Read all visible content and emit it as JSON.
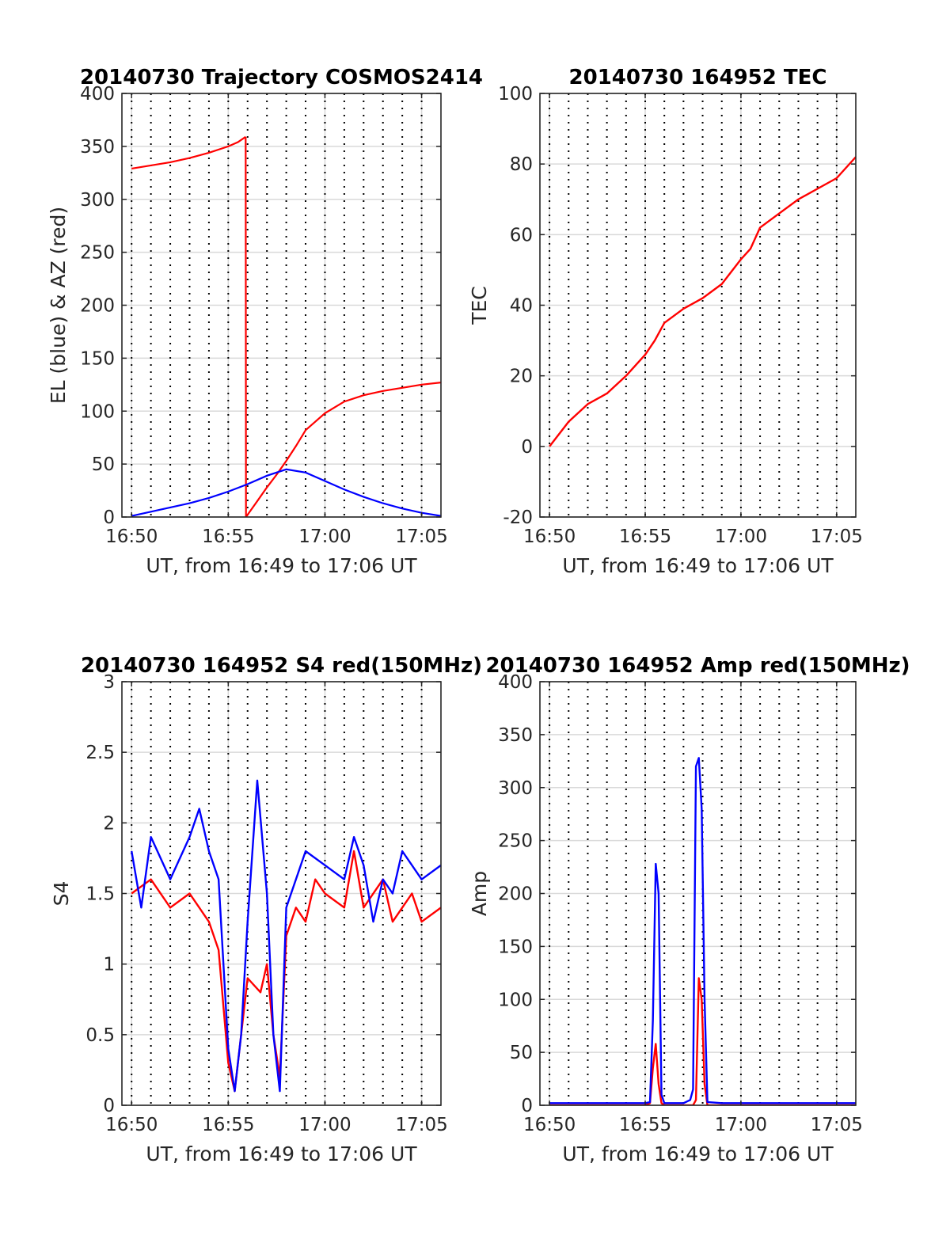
{
  "figure": {
    "vertical_markers": {
      "description_in_image": "dotted vertical lines at one-minute spacing",
      "x": [
        "16:50",
        "16:51",
        "16:52",
        "16:53",
        "16:54",
        "16:55",
        "16:56",
        "16:57",
        "16:58",
        "16:59",
        "17:00",
        "17:01",
        "17:02",
        "17:03",
        "17:04",
        "17:05",
        "17:06"
      ]
    },
    "colors": {
      "red": "#ff0000",
      "blue": "#0000ff",
      "grid": "#d9d9d9",
      "axis": "#262626"
    }
  },
  "chart_data": [
    {
      "id": "trajectory",
      "type": "line",
      "title": "20140730 Trajectory COSMOS2414",
      "xlabel": "UT, from 16:49 to 17:06 UT",
      "ylabel": "EL (blue) & AZ (red)",
      "x_unit": "minutes after 16:50 UT",
      "xlim": [
        "16:49:30",
        "17:06"
      ],
      "ylim": [
        0,
        400
      ],
      "xticks": [
        {
          "label": "16:50",
          "value": "16:50"
        },
        {
          "label": "16:55",
          "value": "16:55"
        },
        {
          "label": "17:00",
          "value": "17:00"
        },
        {
          "label": "17:05",
          "value": "17:05"
        }
      ],
      "yticks": [
        {
          "label": "0",
          "value": 0
        },
        {
          "label": "50",
          "value": 50
        },
        {
          "label": "100",
          "value": 100
        },
        {
          "label": "150",
          "value": 150
        },
        {
          "label": "200",
          "value": 200
        },
        {
          "label": "250",
          "value": 250
        },
        {
          "label": "300",
          "value": 300
        },
        {
          "label": "350",
          "value": 350
        },
        {
          "label": "400",
          "value": 400
        }
      ],
      "grid": true,
      "series": [
        {
          "color": "#ff0000",
          "x": [
            "16:50",
            "16:51",
            "16:52",
            "16:53",
            "16:54",
            "16:55",
            "16:55:30",
            "16:55:54",
            "16:55:55",
            "16:56:30",
            "16:57",
            "16:57:30",
            "16:58",
            "16:58:30",
            "16:59",
            "17:00",
            "17:01",
            "17:02",
            "17:03",
            "17:04",
            "17:05",
            "17:06"
          ],
          "y": [
            329,
            332,
            335,
            339,
            344,
            350,
            354,
            359,
            0,
            15,
            28,
            40,
            53,
            67,
            82,
            98,
            109,
            115,
            119,
            122,
            125,
            127
          ]
        },
        {
          "color": "#0000ff",
          "x": [
            "16:50",
            "16:51",
            "16:52",
            "16:53",
            "16:54",
            "16:55",
            "16:56",
            "16:57",
            "16:58",
            "16:59",
            "17:00",
            "17:01",
            "17:02",
            "17:03",
            "17:04",
            "17:05",
            "17:06"
          ],
          "y": [
            1,
            5,
            9,
            13,
            18,
            24,
            31,
            39,
            45,
            42,
            34,
            26,
            19,
            13,
            8,
            4,
            1
          ]
        }
      ]
    },
    {
      "id": "tec",
      "type": "line",
      "title": "20140730 164952 TEC",
      "xlabel": "UT, from 16:49 to 17:06 UT",
      "ylabel": "TEC",
      "x_unit": "minutes after 16:50 UT",
      "xlim": [
        "16:49:30",
        "17:06"
      ],
      "ylim": [
        -20,
        100
      ],
      "xticks": [
        {
          "label": "16:50",
          "value": "16:50"
        },
        {
          "label": "16:55",
          "value": "16:55"
        },
        {
          "label": "17:00",
          "value": "17:00"
        },
        {
          "label": "17:05",
          "value": "17:05"
        }
      ],
      "yticks": [
        {
          "label": "-20",
          "value": -20
        },
        {
          "label": "0",
          "value": 0
        },
        {
          "label": "20",
          "value": 20
        },
        {
          "label": "40",
          "value": 40
        },
        {
          "label": "60",
          "value": 60
        },
        {
          "label": "80",
          "value": 80
        },
        {
          "label": "100",
          "value": 100
        }
      ],
      "grid": true,
      "series": [
        {
          "color": "#ff0000",
          "x": [
            "16:50",
            "16:51",
            "16:52",
            "16:53",
            "16:54",
            "16:55",
            "16:55:30",
            "16:56",
            "16:57",
            "16:58",
            "16:59",
            "17:00",
            "17:00:30",
            "17:01",
            "17:02",
            "17:03",
            "17:04",
            "17:05",
            "17:06"
          ],
          "y": [
            0,
            7,
            12,
            15,
            20,
            26,
            30,
            35,
            39,
            42,
            46,
            53,
            56,
            62,
            66,
            70,
            73,
            76,
            82
          ]
        }
      ]
    },
    {
      "id": "s4",
      "type": "line",
      "title": "20140730 164952 S4 red(150MHz)",
      "xlabel": "UT, from 16:49 to 17:06 UT",
      "ylabel": "S4",
      "x_unit": "minutes after 16:50 UT",
      "xlim": [
        "16:49:30",
        "17:06"
      ],
      "ylim": [
        0,
        3
      ],
      "xticks": [
        {
          "label": "16:50",
          "value": "16:50"
        },
        {
          "label": "16:55",
          "value": "16:55"
        },
        {
          "label": "17:00",
          "value": "17:00"
        },
        {
          "label": "17:05",
          "value": "17:05"
        }
      ],
      "yticks": [
        {
          "label": "0",
          "value": 0
        },
        {
          "label": "0.5",
          "value": 0.5
        },
        {
          "label": "1",
          "value": 1
        },
        {
          "label": "1.5",
          "value": 1.5
        },
        {
          "label": "2",
          "value": 2
        },
        {
          "label": "2.5",
          "value": 2.5
        },
        {
          "label": "3",
          "value": 3
        }
      ],
      "grid": true,
      "series": [
        {
          "color": "#ff0000",
          "x": [
            "16:50",
            "16:51",
            "16:52",
            "16:53",
            "16:54",
            "16:54:30",
            "16:55",
            "16:55:20",
            "16:56",
            "16:56:40",
            "16:57",
            "16:57:20",
            "16:57:40",
            "16:58",
            "16:58:30",
            "16:59",
            "16:59:30",
            "17:00",
            "17:01",
            "17:01:30",
            "17:02",
            "17:03",
            "17:03:30",
            "17:04",
            "17:04:30",
            "17:05",
            "17:06"
          ],
          "y": [
            1.5,
            1.6,
            1.4,
            1.5,
            1.3,
            1.1,
            0.3,
            0.1,
            0.9,
            0.8,
            1.0,
            0.5,
            0.2,
            1.2,
            1.4,
            1.3,
            1.6,
            1.5,
            1.4,
            1.8,
            1.4,
            1.6,
            1.3,
            1.4,
            1.5,
            1.3,
            1.4
          ]
        },
        {
          "color": "#0000ff",
          "x": [
            "16:50",
            "16:50:30",
            "16:51",
            "16:52",
            "16:53",
            "16:53:30",
            "16:54",
            "16:54:30",
            "16:55",
            "16:55:20",
            "16:55:40",
            "16:56",
            "16:56:30",
            "16:57",
            "16:57:20",
            "16:57:40",
            "16:58",
            "16:59",
            "17:00",
            "17:01",
            "17:01:30",
            "17:02",
            "17:02:30",
            "17:03",
            "17:03:30",
            "17:04",
            "17:05",
            "17:06"
          ],
          "y": [
            1.8,
            1.4,
            1.9,
            1.6,
            1.9,
            2.1,
            1.8,
            1.6,
            0.4,
            0.1,
            0.5,
            1.3,
            2.3,
            1.5,
            0.5,
            0.1,
            1.4,
            1.8,
            1.7,
            1.6,
            1.9,
            1.7,
            1.3,
            1.6,
            1.5,
            1.8,
            1.6,
            1.7
          ]
        }
      ]
    },
    {
      "id": "amp",
      "type": "line",
      "title": "20140730 164952 Amp red(150MHz)",
      "xlabel": "UT, from 16:49 to 17:06 UT",
      "ylabel": "Amp",
      "x_unit": "minutes after 16:50 UT",
      "xlim": [
        "16:49:30",
        "17:06"
      ],
      "ylim": [
        0,
        400
      ],
      "xticks": [
        {
          "label": "16:50",
          "value": "16:50"
        },
        {
          "label": "16:55",
          "value": "16:55"
        },
        {
          "label": "17:00",
          "value": "17:00"
        },
        {
          "label": "17:05",
          "value": "17:05"
        }
      ],
      "yticks": [
        {
          "label": "0",
          "value": 0
        },
        {
          "label": "50",
          "value": 50
        },
        {
          "label": "100",
          "value": 100
        },
        {
          "label": "150",
          "value": 150
        },
        {
          "label": "200",
          "value": 200
        },
        {
          "label": "250",
          "value": 250
        },
        {
          "label": "300",
          "value": 300
        },
        {
          "label": "350",
          "value": 350
        },
        {
          "label": "400",
          "value": 400
        }
      ],
      "grid": true,
      "series": [
        {
          "color": "#ff0000",
          "x": [
            "16:50",
            "16:55",
            "16:55:15",
            "16:55:24",
            "16:55:33",
            "16:55:42",
            "16:55:51",
            "16:56",
            "16:57",
            "16:57:30",
            "16:57:39",
            "16:57:48",
            "16:57:57",
            "16:58:06",
            "16:58:15",
            "16:59",
            "17:00",
            "17:06"
          ],
          "y": [
            0,
            0,
            2,
            35,
            58,
            20,
            2,
            0,
            0,
            0,
            5,
            120,
            100,
            20,
            0,
            0,
            0,
            0
          ]
        },
        {
          "color": "#0000ff",
          "x": [
            "16:50",
            "16:55",
            "16:55:15",
            "16:55:24",
            "16:55:33",
            "16:55:42",
            "16:55:51",
            "16:56",
            "16:57",
            "16:57:21",
            "16:57:30",
            "16:57:39",
            "16:57:48",
            "16:57:57",
            "16:58:06",
            "16:58:15",
            "16:59",
            "17:00",
            "17:06"
          ],
          "y": [
            2,
            2,
            3,
            80,
            228,
            200,
            10,
            2,
            2,
            5,
            15,
            320,
            328,
            280,
            100,
            3,
            2,
            2,
            2
          ]
        }
      ]
    }
  ]
}
